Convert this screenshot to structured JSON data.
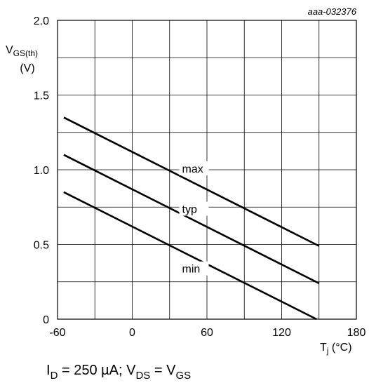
{
  "chart_data": {
    "type": "line",
    "figure_code": "aaa-032376",
    "ylabel_main": "V",
    "ylabel_sub": "GS(th)",
    "ylabel_unit": "(V)",
    "xlabel_main": "T",
    "xlabel_sub": "j",
    "xlabel_unit": "(°C)",
    "xlim": [
      -60,
      180
    ],
    "ylim": [
      0,
      2.0
    ],
    "x_ticks": [
      -60,
      0,
      60,
      120,
      180
    ],
    "x_tick_labels": [
      "-60",
      "0",
      "60",
      "120",
      "180"
    ],
    "y_ticks": [
      0,
      0.5,
      1.0,
      1.5,
      2.0
    ],
    "y_tick_labels": [
      "0",
      "0.5",
      "1.0",
      "1.5",
      "2.0"
    ],
    "x_grid_step": 30,
    "y_grid_step": 0.25,
    "grid": true,
    "series": [
      {
        "name": "max",
        "x": [
          -55,
          150
        ],
        "y": [
          1.35,
          0.49
        ],
        "label_at": [
          40,
          1.0
        ]
      },
      {
        "name": "typ",
        "x": [
          -55,
          150
        ],
        "y": [
          1.1,
          0.24
        ],
        "label_at": [
          40,
          0.73
        ]
      },
      {
        "name": "min",
        "x": [
          -55,
          148
        ],
        "y": [
          0.85,
          0.0
        ],
        "label_at": [
          40,
          0.33
        ]
      }
    ],
    "condition": {
      "i_main": "I",
      "i_sub": "D",
      "i_value": " = 250 µA; V",
      "v1_sub": "DS",
      "eq": " = V",
      "v2_sub": "GS"
    }
  }
}
